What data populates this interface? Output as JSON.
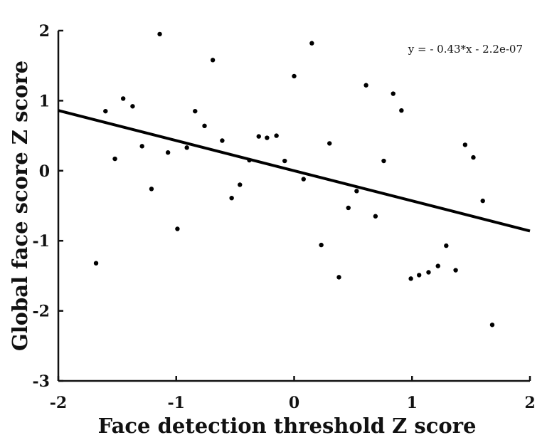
{
  "chart_data": {
    "type": "scatter",
    "xlabel": "Face detection threshold Z score",
    "ylabel": "Global face score Z score",
    "xlim": [
      -2,
      2
    ],
    "ylim": [
      -3,
      2
    ],
    "xticks": [
      -2,
      -1,
      0,
      1,
      2
    ],
    "yticks": [
      -3,
      -2,
      -1,
      0,
      1,
      2
    ],
    "grid": false,
    "colors": {
      "points": "#000000",
      "line": "#000000",
      "axes": "#111111"
    },
    "annotation": "y = - 0.43*x - 2.2e-07",
    "fit_line": {
      "slope": -0.43,
      "intercept": -2.2e-07,
      "x_range": [
        -2,
        2
      ]
    },
    "points": [
      [
        -1.68,
        -1.32
      ],
      [
        -1.6,
        0.85
      ],
      [
        -1.52,
        0.17
      ],
      [
        -1.45,
        1.03
      ],
      [
        -1.37,
        0.92
      ],
      [
        -1.29,
        0.35
      ],
      [
        -1.21,
        -0.26
      ],
      [
        -1.14,
        1.95
      ],
      [
        -1.07,
        0.26
      ],
      [
        -0.99,
        -0.83
      ],
      [
        -0.91,
        0.33
      ],
      [
        -0.84,
        0.85
      ],
      [
        -0.76,
        0.64
      ],
      [
        -0.69,
        1.58
      ],
      [
        -0.61,
        0.43
      ],
      [
        -0.53,
        -0.39
      ],
      [
        -0.46,
        -0.2
      ],
      [
        -0.38,
        0.15
      ],
      [
        -0.3,
        0.49
      ],
      [
        -0.23,
        0.47
      ],
      [
        -0.15,
        0.5
      ],
      [
        -0.08,
        0.14
      ],
      [
        0.0,
        1.35
      ],
      [
        0.08,
        -0.12
      ],
      [
        0.15,
        1.82
      ],
      [
        0.23,
        -1.06
      ],
      [
        0.3,
        0.39
      ],
      [
        0.38,
        -1.52
      ],
      [
        0.46,
        -0.53
      ],
      [
        0.53,
        -0.29
      ],
      [
        0.61,
        1.22
      ],
      [
        0.69,
        -0.65
      ],
      [
        0.76,
        0.14
      ],
      [
        0.84,
        1.1
      ],
      [
        0.91,
        0.86
      ],
      [
        0.99,
        -1.54
      ],
      [
        1.06,
        -1.49
      ],
      [
        1.14,
        -1.45
      ],
      [
        1.22,
        -1.36
      ],
      [
        1.29,
        -1.07
      ],
      [
        1.37,
        -1.42
      ],
      [
        1.45,
        0.37
      ],
      [
        1.52,
        0.19
      ],
      [
        1.6,
        -0.43
      ],
      [
        1.68,
        -2.2
      ]
    ]
  }
}
